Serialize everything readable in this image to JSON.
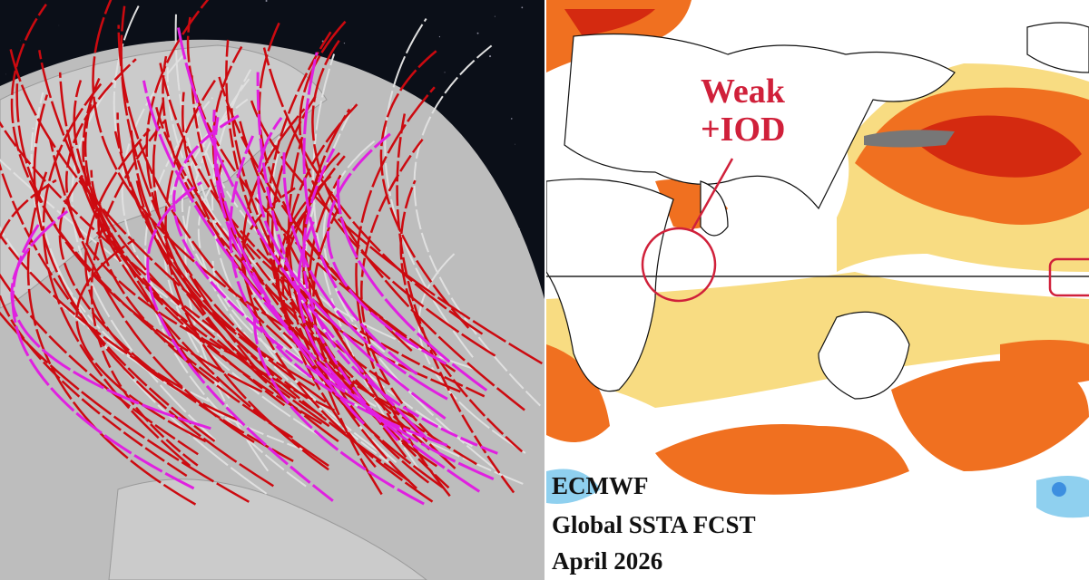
{
  "left_panel": {
    "colors": {
      "space": "#0b0f18",
      "globe": "#bdbdbd",
      "land": "#cfcfcf",
      "track_red": "#cc0a10",
      "track_magenta": "#e020e0",
      "track_grey": "#e0e0e0"
    }
  },
  "right_panel": {
    "annotation": {
      "line1": "Weak",
      "line2": "+IOD",
      "color": "#d0203a"
    },
    "caption": {
      "line1": "ECMWF",
      "line2": "Global SSTA FCST",
      "line3": "April 2026"
    },
    "colors": {
      "warm_light": "#f8dc82",
      "warm": "#f07020",
      "warm_strong": "#d42a10",
      "extreme": "#777777",
      "cool": "#8fd0ef",
      "cool_strong": "#3d8fe0"
    }
  }
}
